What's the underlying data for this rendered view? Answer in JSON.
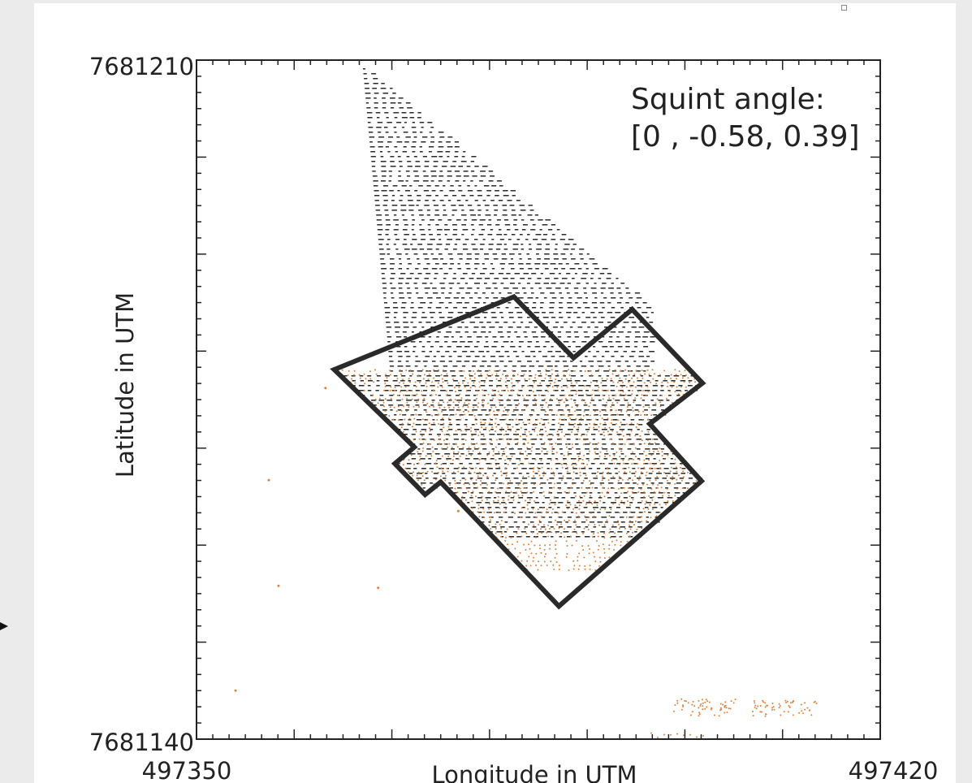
{
  "chart_data": {
    "type": "scatter",
    "title": "",
    "xlabel": "Longitude in UTM",
    "ylabel": "Latitude in UTM",
    "xlim": [
      497350,
      497420
    ],
    "ylim": [
      7681140,
      7681210
    ],
    "x_tick_labels": [
      "497350",
      "497420"
    ],
    "y_tick_labels": [
      "7681140",
      "7681210"
    ],
    "annotation": {
      "line1": "Squint angle:",
      "line2": "[0 , -0.58, 0.39]"
    },
    "series": [
      {
        "color": "#2a2a2a",
        "marker": "dash",
        "region": "upper triangular wedge",
        "x_range": [
          497367,
          497387
        ],
        "y_range": [
          7681177,
          7681209
        ]
      },
      {
        "color": "#d9813f",
        "marker": "dot",
        "region": "inside outline",
        "x_range": [
          497365,
          497402
        ],
        "y_range": [
          7681158,
          7681178
        ]
      }
    ],
    "outline": {
      "color": "#2a2a2a",
      "vertices": [
        [
          497364.1,
          7681178.1
        ],
        [
          497372.3,
          7681170.1
        ],
        [
          497370.3,
          7681168.4
        ],
        [
          497373.4,
          7681165.2
        ],
        [
          497375.0,
          7681166.5
        ],
        [
          497387.1,
          7681153.7
        ],
        [
          497401.7,
          7681166.6
        ],
        [
          497396.4,
          7681172.5
        ],
        [
          497401.8,
          7681176.7
        ],
        [
          497394.6,
          7681184.3
        ],
        [
          497388.6,
          7681179.3
        ],
        [
          497382.5,
          7681185.6
        ]
      ]
    },
    "isolated_points": [
      [
        497357.4,
        7681166.7
      ],
      [
        497358.4,
        7681155.8
      ],
      [
        497354.0,
        7681145.0
      ],
      [
        497368.6,
        7681155.6
      ],
      [
        497363.2,
        7681176.2
      ],
      [
        497376.8,
        7681163.5
      ]
    ],
    "grid": false,
    "legend": "none"
  }
}
